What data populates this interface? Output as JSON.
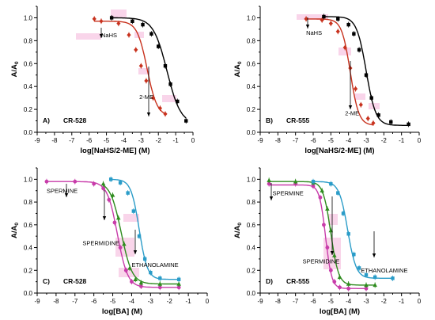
{
  "figure": {
    "y_axis_symbol": "A/A",
    "y_axis_subscript": "0",
    "colors": {
      "black": "#000000",
      "red": "#c8321e",
      "magenta": "#c83caa",
      "green": "#2e8b1e",
      "blue": "#2a9cc8",
      "highlight": "#f6bfdf"
    }
  },
  "chart_data": [
    {
      "type": "scatter",
      "panel_label": "A)",
      "compound": "CR-528",
      "xlabel": "log[NaHS/2-ME] (M)",
      "ylabel": "A/A0",
      "xlim": [
        -9,
        0
      ],
      "ylim": [
        0,
        1.1
      ],
      "xticks": [
        "-9",
        "-8",
        "-7",
        "-6",
        "-5",
        "-4",
        "-3",
        "-2",
        "-1",
        "0"
      ],
      "yticks": [
        "0.0",
        "0.2",
        "0.4",
        "0.6",
        "0.8",
        "1.0"
      ],
      "grid": false,
      "annotations": [
        {
          "text": "NaHS",
          "x": -5.3,
          "y": 0.83
        },
        {
          "text": "2-ME",
          "x": -3.1,
          "y": 0.29
        }
      ],
      "series": [
        {
          "name": "NaHS",
          "color": "#c8321e",
          "marker": "diamond",
          "curve": {
            "top": 0.97,
            "bottom": 0.14,
            "logec50": -2.65,
            "hill": 1.5
          },
          "x": [
            -5.7,
            -5.3,
            -4.3,
            -3.7,
            -3.3,
            -3.0,
            -2.7,
            -2.3,
            -1.9,
            -1.6
          ],
          "y": [
            0.99,
            0.97,
            0.95,
            0.85,
            0.72,
            0.58,
            0.45,
            0.3,
            0.21,
            0.16
          ]
        },
        {
          "name": "2-ME",
          "color": "#000000",
          "marker": "square",
          "curve": {
            "top": 1.0,
            "bottom": 0.07,
            "logec50": -1.5,
            "hill": 1.1
          },
          "x": [
            -4.7,
            -3.5,
            -2.9,
            -2.4,
            -2.0,
            -1.6,
            -1.3,
            -0.9,
            -0.4
          ],
          "y": [
            1.0,
            0.97,
            0.94,
            0.86,
            0.75,
            0.58,
            0.42,
            0.27,
            0.1
          ]
        }
      ]
    },
    {
      "type": "scatter",
      "panel_label": "B)",
      "compound": "CR-555",
      "xlabel": "log[NaHS/2-ME] (M)",
      "ylabel": "A/A0",
      "xlim": [
        -9,
        0
      ],
      "ylim": [
        0,
        1.1
      ],
      "xticks": [
        "-9",
        "-8",
        "-7",
        "-6",
        "-5",
        "-4",
        "-3",
        "-2",
        "-1",
        "0"
      ],
      "yticks": [
        "0.0",
        "0.2",
        "0.4",
        "0.6",
        "0.8",
        "1.0"
      ],
      "grid": false,
      "annotations": [
        {
          "text": "NaHS",
          "x": -6.4,
          "y": 0.85
        },
        {
          "text": "2-ME",
          "x": -4.2,
          "y": 0.15
        }
      ],
      "series": [
        {
          "name": "NaHS",
          "color": "#c8321e",
          "marker": "diamond",
          "curve": {
            "top": 0.99,
            "bottom": 0.06,
            "logec50": -3.9,
            "hill": 1.8
          },
          "x": [
            -6.4,
            -5.5,
            -5.0,
            -4.6,
            -4.2,
            -3.9,
            -3.6,
            -3.3,
            -2.9,
            -2.6
          ],
          "y": [
            0.99,
            0.98,
            0.95,
            0.88,
            0.74,
            0.56,
            0.38,
            0.24,
            0.12,
            0.08
          ]
        },
        {
          "name": "2-ME",
          "color": "#000000",
          "marker": "square",
          "curve": {
            "top": 1.01,
            "bottom": 0.06,
            "logec50": -3.0,
            "hill": 1.6
          },
          "x": [
            -5.4,
            -4.6,
            -4.0,
            -3.7,
            -3.4,
            -3.0,
            -2.7,
            -2.3,
            -1.6,
            -0.6
          ],
          "y": [
            1.01,
            0.99,
            0.94,
            0.86,
            0.72,
            0.5,
            0.3,
            0.15,
            0.09,
            0.07
          ]
        }
      ]
    },
    {
      "type": "scatter",
      "panel_label": "C)",
      "compound": "CR-528",
      "xlabel": "log[BA] (M)",
      "ylabel": "A/A0",
      "xlim": [
        -9,
        0
      ],
      "ylim": [
        0,
        1.1
      ],
      "xticks": [
        "-9",
        "-8",
        "-7",
        "-6",
        "-5",
        "-4",
        "-3",
        "-2",
        "-1",
        "0"
      ],
      "yticks": [
        "0.0",
        "0.2",
        "0.4",
        "0.6",
        "0.8",
        "1.0"
      ],
      "grid": false,
      "annotations": [
        {
          "text": "SPERMINE",
          "x": -8.5,
          "y": 0.88
        },
        {
          "text": "SPERMIDINE",
          "x": -6.6,
          "y": 0.42
        },
        {
          "text": "ETHANOLAMINE",
          "x": -4.0,
          "y": 0.23
        }
      ],
      "series": [
        {
          "name": "SPERMINE",
          "color": "#c83caa",
          "marker": "circle",
          "curve": {
            "top": 0.98,
            "bottom": 0.05,
            "logec50": -4.75,
            "hill": 1.6
          },
          "x": [
            -8.5,
            -7.0,
            -6.0,
            -5.5,
            -5.2,
            -4.9,
            -4.6,
            -4.3,
            -4.0,
            -3.5,
            -2.5,
            -1.5
          ],
          "y": [
            0.98,
            0.98,
            0.96,
            0.92,
            0.82,
            0.62,
            0.4,
            0.2,
            0.1,
            0.06,
            0.05,
            0.05
          ]
        },
        {
          "name": "SPERMIDINE",
          "color": "#2e8b1e",
          "marker": "triangle",
          "curve": {
            "top": 0.98,
            "bottom": 0.08,
            "logec50": -4.55,
            "hill": 1.5
          },
          "x": [
            -5.5,
            -5.0,
            -4.7,
            -4.4,
            -4.1,
            -3.8,
            -3.5,
            -2.5,
            -1.5
          ],
          "y": [
            0.96,
            0.86,
            0.66,
            0.43,
            0.22,
            0.12,
            0.09,
            0.08,
            0.08
          ]
        },
        {
          "name": "ETHANOLAMINE",
          "color": "#2a9cc8",
          "marker": "square",
          "curve": {
            "top": 1.0,
            "bottom": 0.12,
            "logec50": -3.6,
            "hill": 2.0
          },
          "x": [
            -5.1,
            -4.6,
            -4.2,
            -3.9,
            -3.6,
            -3.3,
            -3.0,
            -2.5,
            -1.5
          ],
          "y": [
            1.0,
            0.97,
            0.88,
            0.72,
            0.5,
            0.3,
            0.18,
            0.13,
            0.12
          ]
        }
      ]
    },
    {
      "type": "scatter",
      "panel_label": "D)",
      "compound": "CR-555",
      "xlabel": "log[BA] (M)",
      "ylabel": "A/A0",
      "xlim": [
        -9,
        0
      ],
      "ylim": [
        0,
        1.1
      ],
      "xticks": [
        "-9",
        "-8",
        "-7",
        "-6",
        "-5",
        "-4",
        "-3",
        "-2",
        "-1",
        "0"
      ],
      "yticks": [
        "0.0",
        "0.2",
        "0.4",
        "0.6",
        "0.8",
        "1.0"
      ],
      "grid": false,
      "annotations": [
        {
          "text": "SPERMINE",
          "x": -8.3,
          "y": 0.86
        },
        {
          "text": "SPERMIDINE",
          "x": -6.6,
          "y": 0.26
        },
        {
          "text": "ETHANOLAMINE",
          "x": -3.3,
          "y": 0.18
        }
      ],
      "series": [
        {
          "name": "SPERMINE",
          "color": "#c83caa",
          "marker": "circle",
          "curve": {
            "top": 0.95,
            "bottom": 0.04,
            "logec50": -5.3,
            "hill": 2.5
          },
          "x": [
            -8.5,
            -7.0,
            -6.0,
            -5.6,
            -5.4,
            -5.2,
            -5.0,
            -4.8,
            -4.5,
            -4.0,
            -3.0
          ],
          "y": [
            0.96,
            0.96,
            0.94,
            0.84,
            0.6,
            0.4,
            0.2,
            0.1,
            0.05,
            0.04,
            0.04
          ]
        },
        {
          "name": "SPERMIDINE",
          "color": "#2e8b1e",
          "marker": "triangle",
          "curve": {
            "top": 0.98,
            "bottom": 0.07,
            "logec50": -5.0,
            "hill": 2.0
          },
          "x": [
            -8.5,
            -7.0,
            -6.0,
            -5.5,
            -5.2,
            -5.0,
            -4.8,
            -4.5,
            -4.0,
            -3.0,
            -2.5
          ],
          "y": [
            0.99,
            0.98,
            0.97,
            0.9,
            0.74,
            0.55,
            0.33,
            0.14,
            0.08,
            0.07,
            0.07
          ]
        },
        {
          "name": "ETHANOLAMINE",
          "color": "#2a9cc8",
          "marker": "square",
          "curve": {
            "top": 0.98,
            "bottom": 0.13,
            "logec50": -4.05,
            "hill": 1.8
          },
          "x": [
            -6.0,
            -5.0,
            -4.6,
            -4.3,
            -4.0,
            -3.7,
            -3.4,
            -3.0,
            -2.5,
            -1.5
          ],
          "y": [
            0.98,
            0.96,
            0.88,
            0.7,
            0.52,
            0.34,
            0.22,
            0.16,
            0.14,
            0.13
          ]
        }
      ]
    }
  ]
}
